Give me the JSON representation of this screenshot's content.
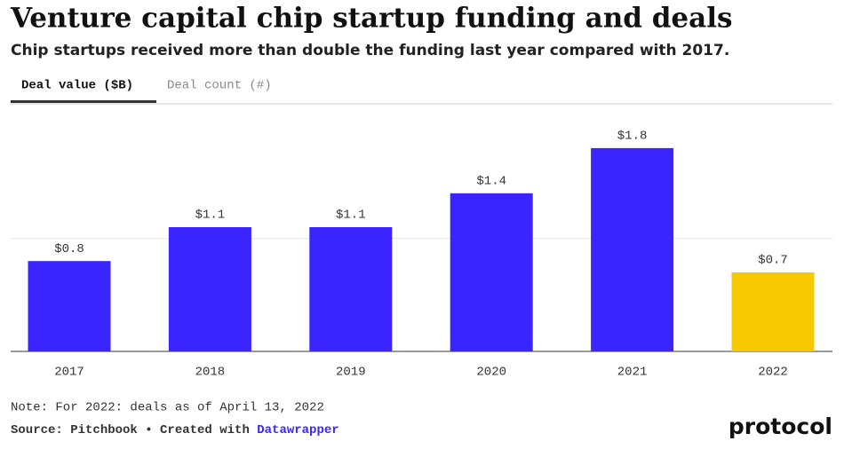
{
  "chart_data": {
    "type": "bar",
    "title": "Venture capital chip startup funding and deals",
    "subtitle": "Chip startups received more than double the funding last year compared with 2017.",
    "tabs": [
      "Deal value ($B)",
      "Deal count (#)"
    ],
    "categories": [
      "2017",
      "2018",
      "2019",
      "2020",
      "2021",
      "2022"
    ],
    "values": [
      0.8,
      1.1,
      1.1,
      1.4,
      1.8,
      0.7
    ],
    "value_labels": [
      "$0.8",
      "$1.1",
      "$1.1",
      "$1.4",
      "$1.8",
      "$0.7"
    ],
    "colors": [
      "#3a24ff",
      "#3a24ff",
      "#3a24ff",
      "#3a24ff",
      "#3a24ff",
      "#f6c800"
    ],
    "ylim": [
      0,
      2.2
    ],
    "yticks": [
      0,
      1
    ],
    "grid": true,
    "note": "Note: For 2022: deals as of April 13, 2022",
    "source": "Source: Pitchbook • Created with",
    "source_link": "Datawrapper",
    "logo": "protocol"
  }
}
